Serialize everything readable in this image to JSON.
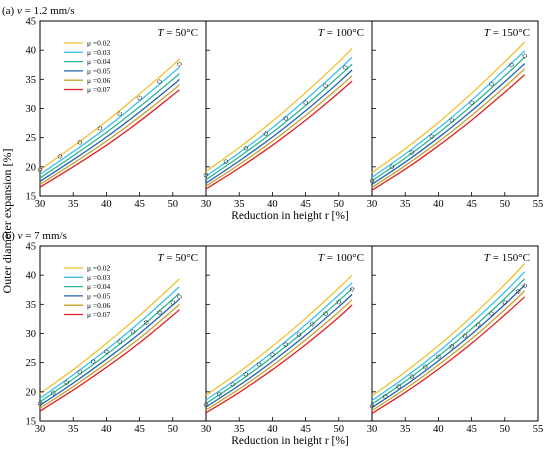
{
  "figure": {
    "ylabel": "Outer diameter expansion [%]",
    "xlabel": "Reduction in height r [%]",
    "legend_prefix": "μ ="
  },
  "colors": {
    "mu_0.02": "#f2c12e",
    "mu_0.03": "#3cc0e8",
    "mu_0.04": "#2fb39a",
    "mu_0.05": "#1f63b4",
    "mu_0.06": "#c8a030",
    "mu_0.07": "#e02020",
    "experimental": "#333333"
  },
  "chart_data": [
    {
      "type": "line",
      "row_label": "(a) v = 1.2 mm/s",
      "panel_label": "T = 50°C",
      "x": [
        30,
        35,
        40,
        45,
        50,
        51
      ],
      "xlim": [
        30,
        55
      ],
      "ylim": [
        15,
        45
      ],
      "yticks": [
        15,
        20,
        25,
        30,
        35,
        40,
        45
      ],
      "xticks": [
        30,
        35,
        40,
        45,
        50
      ],
      "series": [
        {
          "name": "μ =0.02",
          "values": [
            19.5,
            23.5,
            27.8,
            32.5,
            37.4,
            38.5
          ]
        },
        {
          "name": "μ =0.03",
          "values": [
            18.7,
            22.6,
            26.7,
            31.3,
            36.1,
            37.1
          ]
        },
        {
          "name": "μ =0.04",
          "values": [
            18.1,
            21.9,
            25.9,
            30.3,
            35.0,
            36.0
          ]
        },
        {
          "name": "μ =0.05",
          "values": [
            17.5,
            21.2,
            25.1,
            29.4,
            34.0,
            35.0
          ]
        },
        {
          "name": "μ =0.06",
          "values": [
            17.0,
            20.6,
            24.4,
            28.6,
            33.1,
            34.1
          ]
        },
        {
          "name": "μ =0.07",
          "values": [
            16.5,
            20.0,
            23.7,
            27.8,
            32.3,
            33.2
          ]
        }
      ],
      "experimental": {
        "x": [
          30,
          33,
          36,
          39,
          42,
          45,
          48,
          51
        ],
        "values": [
          19.5,
          21.8,
          24.2,
          26.6,
          29.1,
          31.8,
          34.6,
          37.6
        ]
      }
    },
    {
      "type": "line",
      "panel_label": "T = 100°C",
      "x": [
        30,
        35,
        40,
        45,
        50,
        52
      ],
      "xlim": [
        30,
        55
      ],
      "ylim": [
        15,
        45
      ],
      "xticks": [
        30,
        35,
        40,
        45,
        50
      ],
      "series": [
        {
          "name": "μ =0.02",
          "values": [
            19.2,
            23.3,
            27.8,
            32.7,
            38.0,
            40.3
          ]
        },
        {
          "name": "μ =0.03",
          "values": [
            18.4,
            22.4,
            26.7,
            31.5,
            36.6,
            38.8
          ]
        },
        {
          "name": "μ =0.04",
          "values": [
            17.8,
            21.7,
            25.9,
            30.5,
            35.5,
            37.6
          ]
        },
        {
          "name": "μ =0.05",
          "values": [
            17.2,
            21.0,
            25.1,
            29.6,
            34.5,
            36.6
          ]
        },
        {
          "name": "μ =0.06",
          "values": [
            16.7,
            20.4,
            24.4,
            28.8,
            33.6,
            35.6
          ]
        },
        {
          "name": "μ =0.07",
          "values": [
            16.2,
            19.8,
            23.7,
            28.0,
            32.7,
            34.7
          ]
        }
      ],
      "experimental": {
        "x": [
          30,
          33,
          36,
          39,
          42,
          45,
          48,
          51
        ],
        "values": [
          18.6,
          20.9,
          23.2,
          25.7,
          28.3,
          31.0,
          33.9,
          37.0
        ]
      }
    },
    {
      "type": "line",
      "panel_label": "T = 150°C",
      "x": [
        30,
        35,
        40,
        45,
        50,
        53
      ],
      "xlim": [
        30,
        55
      ],
      "ylim": [
        15,
        45
      ],
      "xticks": [
        30,
        35,
        40,
        45,
        50,
        55
      ],
      "series": [
        {
          "name": "μ =0.02",
          "values": [
            19.0,
            23.1,
            27.6,
            32.6,
            38.0,
            41.4
          ]
        },
        {
          "name": "μ =0.03",
          "values": [
            18.2,
            22.2,
            26.6,
            31.4,
            36.7,
            39.9
          ]
        },
        {
          "name": "μ =0.04",
          "values": [
            17.6,
            21.5,
            25.8,
            30.5,
            35.6,
            38.8
          ]
        },
        {
          "name": "μ =0.05",
          "values": [
            17.0,
            20.8,
            25.0,
            29.6,
            34.6,
            37.7
          ]
        },
        {
          "name": "μ =0.06",
          "values": [
            16.5,
            20.2,
            24.3,
            28.8,
            33.7,
            36.8
          ]
        },
        {
          "name": "μ =0.07",
          "values": [
            16.0,
            19.6,
            23.6,
            28.0,
            32.8,
            35.8
          ]
        }
      ],
      "experimental": {
        "x": [
          30,
          33,
          36,
          39,
          42,
          45,
          48,
          51,
          53
        ],
        "values": [
          17.6,
          20.0,
          22.5,
          25.2,
          28.0,
          31.0,
          34.2,
          37.5,
          39.0
        ]
      }
    },
    {
      "type": "line",
      "row_label": "(b) v = 7 mm/s",
      "panel_label": "T = 50°C",
      "x": [
        30,
        35,
        40,
        45,
        50,
        51
      ],
      "xlim": [
        30,
        55
      ],
      "ylim": [
        15,
        45
      ],
      "yticks": [
        15,
        20,
        25,
        30,
        35,
        40,
        45
      ],
      "xticks": [
        30,
        35,
        40,
        45,
        50
      ],
      "series": [
        {
          "name": "μ =0.02",
          "values": [
            19.7,
            23.8,
            28.3,
            33.1,
            38.3,
            39.4
          ]
        },
        {
          "name": "μ =0.03",
          "values": [
            18.9,
            22.9,
            27.2,
            31.9,
            37.0,
            38.0
          ]
        },
        {
          "name": "μ =0.04",
          "values": [
            18.3,
            22.2,
            26.4,
            30.9,
            35.9,
            36.9
          ]
        },
        {
          "name": "μ =0.05",
          "values": [
            17.7,
            21.5,
            25.6,
            30.0,
            34.9,
            35.9
          ]
        },
        {
          "name": "μ =0.06",
          "values": [
            17.2,
            20.9,
            24.9,
            29.2,
            34.0,
            35.0
          ]
        },
        {
          "name": "μ =0.07",
          "values": [
            16.7,
            20.3,
            24.2,
            28.4,
            33.1,
            34.1
          ]
        }
      ],
      "experimental": {
        "x": [
          30,
          32,
          34,
          36,
          38,
          40,
          42,
          44,
          46,
          48,
          50,
          51
        ],
        "values": [
          18.0,
          19.8,
          21.6,
          23.4,
          25.2,
          26.9,
          28.6,
          30.3,
          31.9,
          33.6,
          35.3,
          36.3
        ]
      }
    },
    {
      "type": "line",
      "panel_label": "T = 100°C",
      "x": [
        30,
        35,
        40,
        45,
        50,
        52
      ],
      "xlim": [
        30,
        55
      ],
      "ylim": [
        15,
        45
      ],
      "xticks": [
        30,
        35,
        40,
        45,
        50
      ],
      "series": [
        {
          "name": "μ =0.02",
          "values": [
            19.4,
            23.4,
            27.8,
            32.6,
            37.8,
            40.0
          ]
        },
        {
          "name": "μ =0.03",
          "values": [
            18.6,
            22.5,
            26.8,
            31.5,
            36.6,
            38.7
          ]
        },
        {
          "name": "μ =0.04",
          "values": [
            18.0,
            21.8,
            26.0,
            30.6,
            35.6,
            37.7
          ]
        },
        {
          "name": "μ =0.05",
          "values": [
            17.4,
            21.1,
            25.2,
            29.7,
            34.6,
            36.7
          ]
        },
        {
          "name": "μ =0.06",
          "values": [
            16.9,
            20.5,
            24.5,
            28.9,
            33.7,
            35.8
          ]
        },
        {
          "name": "μ =0.07",
          "values": [
            16.4,
            19.9,
            23.8,
            28.1,
            32.8,
            34.9
          ]
        }
      ],
      "experimental": {
        "x": [
          30,
          32,
          34,
          36,
          38,
          40,
          42,
          44,
          46,
          48,
          50,
          52
        ],
        "values": [
          17.8,
          19.6,
          21.3,
          23.0,
          24.7,
          26.4,
          28.1,
          29.8,
          31.6,
          33.4,
          35.4,
          37.6
        ]
      }
    },
    {
      "type": "line",
      "panel_label": "T = 150°C",
      "x": [
        30,
        35,
        40,
        45,
        50,
        53
      ],
      "xlim": [
        30,
        55
      ],
      "ylim": [
        15,
        45
      ],
      "xticks": [
        30,
        35,
        40,
        45,
        50,
        55
      ],
      "series": [
        {
          "name": "μ =0.02",
          "values": [
            19.3,
            23.4,
            27.9,
            32.9,
            38.4,
            42.0
          ]
        },
        {
          "name": "μ =0.03",
          "values": [
            18.5,
            22.5,
            26.9,
            31.8,
            37.1,
            40.6
          ]
        },
        {
          "name": "μ =0.04",
          "values": [
            17.9,
            21.8,
            26.1,
            30.8,
            36.0,
            39.4
          ]
        },
        {
          "name": "μ =0.05",
          "values": [
            17.3,
            21.1,
            25.3,
            29.9,
            35.0,
            38.3
          ]
        },
        {
          "name": "μ =0.06",
          "values": [
            16.8,
            20.5,
            24.6,
            29.1,
            34.1,
            37.3
          ]
        },
        {
          "name": "μ =0.07",
          "values": [
            16.3,
            19.9,
            23.9,
            28.3,
            33.2,
            36.3
          ]
        }
      ],
      "experimental": {
        "x": [
          30,
          32,
          34,
          36,
          38,
          40,
          42,
          44,
          46,
          48,
          50,
          52,
          53
        ],
        "values": [
          17.6,
          19.2,
          20.9,
          22.6,
          24.3,
          26.0,
          27.8,
          29.6,
          31.5,
          33.4,
          35.3,
          37.2,
          38.2
        ]
      }
    }
  ]
}
